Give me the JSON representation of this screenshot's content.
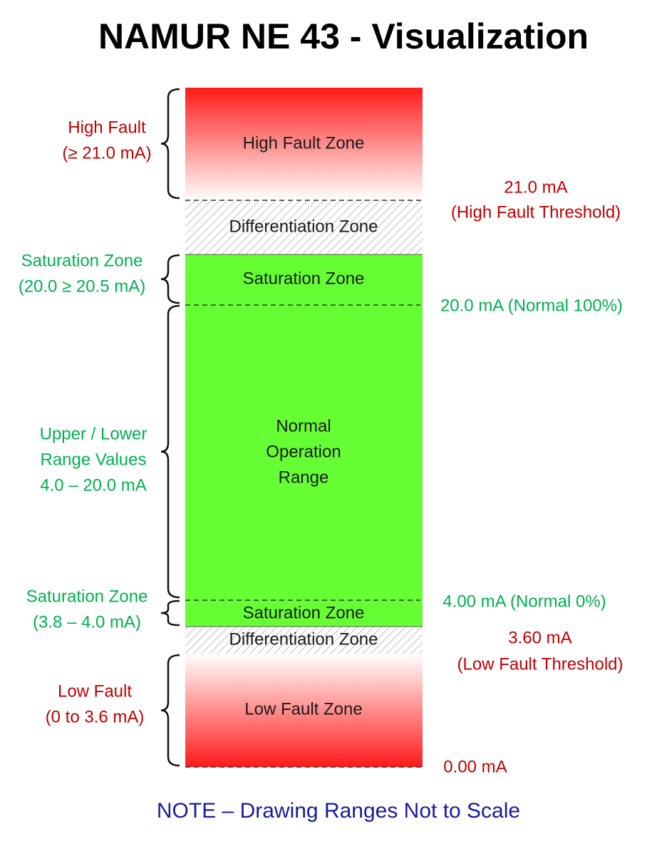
{
  "title": "NAMUR NE 43 - Visualization",
  "zones": {
    "high_fault": "High Fault Zone",
    "differentiation_upper": "Differentiation Zone",
    "saturation_upper": "Saturation Zone",
    "normal": [
      "Normal",
      "Operation",
      "Range"
    ],
    "saturation_lower": "Saturation Zone",
    "differentiation_lower": "Differentiation Zone",
    "low_fault": "Low Fault Zone"
  },
  "left_labels": {
    "high_fault": [
      "High Fault",
      "(≥ 21.0 mA)"
    ],
    "saturation_upper": [
      "Saturation Zone",
      "(20.0 ≥ 20.5 mA)"
    ],
    "range_values": [
      "Upper / Lower",
      "Range Values",
      "4.0 – 20.0 mA"
    ],
    "saturation_lower": [
      "Saturation Zone",
      "(3.8 – 4.0 mA)"
    ],
    "low_fault": [
      "Low Fault",
      "(0 to 3.6 mA)"
    ]
  },
  "right_labels": {
    "high_fault_threshold": [
      "21.0 mA",
      "(High Fault Threshold)"
    ],
    "normal_100": "20.0 mA (Normal 100%)",
    "normal_0": "4.00 mA (Normal 0%)",
    "low_fault_threshold": [
      "3.60 mA",
      "(Low Fault Threshold)"
    ],
    "zero": "0.00 mA"
  },
  "note": "NOTE – Drawing Ranges Not to Scale"
}
